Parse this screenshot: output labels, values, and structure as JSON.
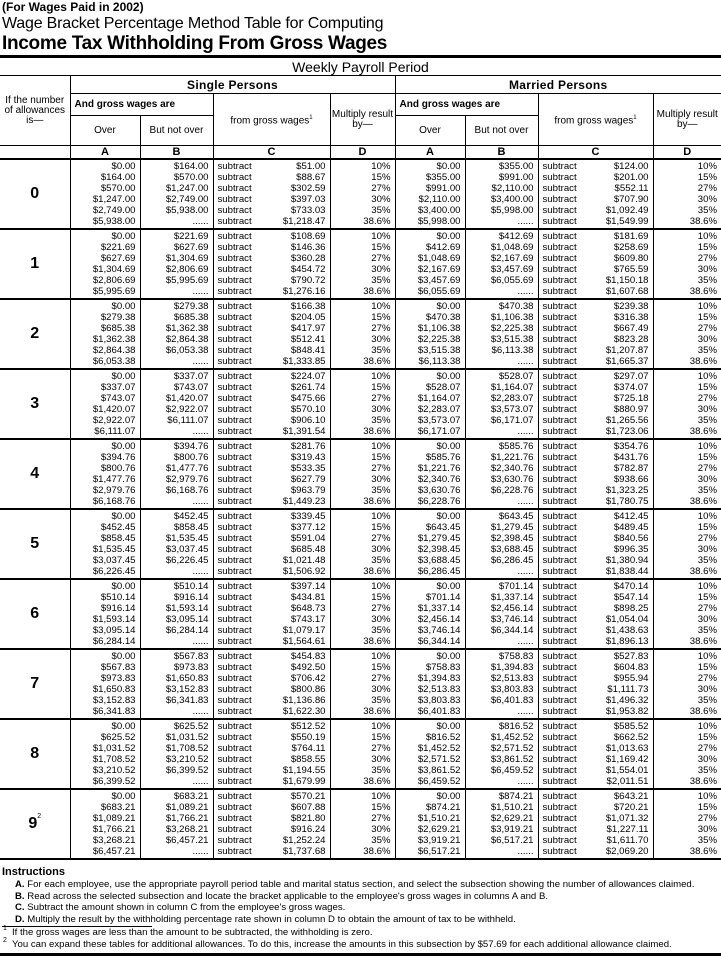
{
  "header": {
    "year_note": "(For Wages Paid in 2002)",
    "title_line1": "Wage Bracket Percentage Method Table for Computing",
    "title_line2": "Income Tax Withholding From Gross Wages",
    "period": "Weekly Payroll Period"
  },
  "columns": {
    "allowances_label": "If the number of allowances is—",
    "single": "Single Persons",
    "married": "Married Persons",
    "wages_are": "And gross wages are",
    "over": "Over",
    "but_not_over": "But not over",
    "from_gross_wages": "from gross wages",
    "footnote_mark": "1",
    "multiply": "Multiply result by—",
    "letters": [
      "A",
      "B",
      "C",
      "D"
    ]
  },
  "subtract_label": "subtract",
  "rates": [
    "10%",
    "15%",
    "27%",
    "30%",
    "35%",
    "38.6%"
  ],
  "groups": [
    {
      "n": "0",
      "sup": "",
      "single": {
        "a": [
          "$0.00",
          "$164.00",
          "$570.00",
          "$1,247.00",
          "$2,749.00",
          "$5,938.00"
        ],
        "b": [
          "$164.00",
          "$570.00",
          "$1,247.00",
          "$2,749.00",
          "$5,938.00",
          "......"
        ],
        "c": [
          "$51.00",
          "$88.67",
          "$302.59",
          "$397.03",
          "$733.03",
          "$1,218.47"
        ]
      },
      "married": {
        "a": [
          "$0.00",
          "$355.00",
          "$991.00",
          "$2,110.00",
          "$3,400.00",
          "$5,998.00"
        ],
        "b": [
          "$355.00",
          "$991.00",
          "$2,110.00",
          "$3,400.00",
          "$5,998.00",
          "......"
        ],
        "c": [
          "$124.00",
          "$201.00",
          "$552.11",
          "$707.90",
          "$1,092.49",
          "$1,549.99"
        ]
      }
    },
    {
      "n": "1",
      "sup": "",
      "single": {
        "a": [
          "$0.00",
          "$221.69",
          "$627.69",
          "$1,304.69",
          "$2,806.69",
          "$5,995.69"
        ],
        "b": [
          "$221.69",
          "$627.69",
          "$1,304.69",
          "$2,806.69",
          "$5,995.69",
          "......"
        ],
        "c": [
          "$108.69",
          "$146.36",
          "$360.28",
          "$454.72",
          "$790.72",
          "$1,276.16"
        ]
      },
      "married": {
        "a": [
          "$0.00",
          "$412.69",
          "$1,048.69",
          "$2,167.69",
          "$3,457.69",
          "$6,055.69"
        ],
        "b": [
          "$412.69",
          "$1,048.69",
          "$2,167.69",
          "$3,457.69",
          "$6,055.69",
          "......"
        ],
        "c": [
          "$181.69",
          "$258.69",
          "$609.80",
          "$765.59",
          "$1,150.18",
          "$1,607.68"
        ]
      }
    },
    {
      "n": "2",
      "sup": "",
      "single": {
        "a": [
          "$0.00",
          "$279.38",
          "$685.38",
          "$1,362.38",
          "$2,864.38",
          "$6,053.38"
        ],
        "b": [
          "$279.38",
          "$685.38",
          "$1,362.38",
          "$2,864.38",
          "$6,053.38",
          "......"
        ],
        "c": [
          "$166.38",
          "$204.05",
          "$417.97",
          "$512.41",
          "$848.41",
          "$1,333.85"
        ]
      },
      "married": {
        "a": [
          "$0.00",
          "$470.38",
          "$1,106.38",
          "$2,225.38",
          "$3,515.38",
          "$6,113.38"
        ],
        "b": [
          "$470.38",
          "$1,106.38",
          "$2,225.38",
          "$3,515.38",
          "$6,113.38",
          "......"
        ],
        "c": [
          "$239.38",
          "$316.38",
          "$667.49",
          "$823.28",
          "$1,207.87",
          "$1,665.37"
        ]
      }
    },
    {
      "n": "3",
      "sup": "",
      "single": {
        "a": [
          "$0.00",
          "$337.07",
          "$743.07",
          "$1,420.07",
          "$2,922.07",
          "$6,111.07"
        ],
        "b": [
          "$337.07",
          "$743.07",
          "$1,420.07",
          "$2,922.07",
          "$6,111.07",
          "......"
        ],
        "c": [
          "$224.07",
          "$261.74",
          "$475.66",
          "$570.10",
          "$906.10",
          "$1,391.54"
        ]
      },
      "married": {
        "a": [
          "$0.00",
          "$528.07",
          "$1,164.07",
          "$2,283.07",
          "$3,573.07",
          "$6,171.07"
        ],
        "b": [
          "$528.07",
          "$1,164.07",
          "$2,283.07",
          "$3,573.07",
          "$6,171.07",
          "......"
        ],
        "c": [
          "$297.07",
          "$374.07",
          "$725.18",
          "$880.97",
          "$1,265.56",
          "$1,723.06"
        ]
      }
    },
    {
      "n": "4",
      "sup": "",
      "single": {
        "a": [
          "$0.00",
          "$394.76",
          "$800.76",
          "$1,477.76",
          "$2,979.76",
          "$6,168.76"
        ],
        "b": [
          "$394.76",
          "$800.76",
          "$1,477.76",
          "$2,979.76",
          "$6,168.76",
          "......"
        ],
        "c": [
          "$281.76",
          "$319.43",
          "$533.35",
          "$627.79",
          "$963.79",
          "$1,449.23"
        ]
      },
      "married": {
        "a": [
          "$0.00",
          "$585.76",
          "$1,221.76",
          "$2,340.76",
          "$3,630.76",
          "$6,228.76"
        ],
        "b": [
          "$585.76",
          "$1,221.76",
          "$2,340.76",
          "$3,630.76",
          "$6,228.76",
          "......"
        ],
        "c": [
          "$354.76",
          "$431.76",
          "$782.87",
          "$938.66",
          "$1,323.25",
          "$1,780.75"
        ]
      }
    },
    {
      "n": "5",
      "sup": "",
      "single": {
        "a": [
          "$0.00",
          "$452.45",
          "$858.45",
          "$1,535.45",
          "$3,037.45",
          "$6,226.45"
        ],
        "b": [
          "$452.45",
          "$858.45",
          "$1,535.45",
          "$3,037.45",
          "$6,226.45",
          "......"
        ],
        "c": [
          "$339.45",
          "$377.12",
          "$591.04",
          "$685.48",
          "$1,021.48",
          "$1,506.92"
        ]
      },
      "married": {
        "a": [
          "$0.00",
          "$643.45",
          "$1,279.45",
          "$2,398.45",
          "$3,688.45",
          "$6,286.45"
        ],
        "b": [
          "$643.45",
          "$1,279.45",
          "$2,398.45",
          "$3,688.45",
          "$6,286.45",
          "......"
        ],
        "c": [
          "$412.45",
          "$489.45",
          "$840.56",
          "$996.35",
          "$1,380.94",
          "$1,838.44"
        ]
      }
    },
    {
      "n": "6",
      "sup": "",
      "single": {
        "a": [
          "$0.00",
          "$510.14",
          "$916.14",
          "$1,593.14",
          "$3,095.14",
          "$6,284.14"
        ],
        "b": [
          "$510.14",
          "$916.14",
          "$1,593.14",
          "$3,095.14",
          "$6,284.14",
          "......"
        ],
        "c": [
          "$397.14",
          "$434.81",
          "$648.73",
          "$743.17",
          "$1,079.17",
          "$1,564.61"
        ]
      },
      "married": {
        "a": [
          "$0.00",
          "$701.14",
          "$1,337.14",
          "$2,456.14",
          "$3,746.14",
          "$6,344.14"
        ],
        "b": [
          "$701.14",
          "$1,337.14",
          "$2,456.14",
          "$3,746.14",
          "$6,344.14",
          "......"
        ],
        "c": [
          "$470.14",
          "$547.14",
          "$898.25",
          "$1,054.04",
          "$1,438.63",
          "$1,896.13"
        ]
      }
    },
    {
      "n": "7",
      "sup": "",
      "single": {
        "a": [
          "$0.00",
          "$567.83",
          "$973.83",
          "$1,650.83",
          "$3,152.83",
          "$6,341.83"
        ],
        "b": [
          "$567.83",
          "$973.83",
          "$1,650.83",
          "$3,152.83",
          "$6,341.83",
          "......"
        ],
        "c": [
          "$454.83",
          "$492.50",
          "$706.42",
          "$800.86",
          "$1,136.86",
          "$1,622.30"
        ]
      },
      "married": {
        "a": [
          "$0.00",
          "$758.83",
          "$1,394.83",
          "$2,513.83",
          "$3,803.83",
          "$6,401.83"
        ],
        "b": [
          "$758.83",
          "$1,394.83",
          "$2,513.83",
          "$3,803.83",
          "$6,401.83",
          "......"
        ],
        "c": [
          "$527.83",
          "$604.83",
          "$955.94",
          "$1,111.73",
          "$1,496.32",
          "$1,953.82"
        ]
      }
    },
    {
      "n": "8",
      "sup": "",
      "single": {
        "a": [
          "$0.00",
          "$625.52",
          "$1,031.52",
          "$1,708.52",
          "$3,210.52",
          "$6,399.52"
        ],
        "b": [
          "$625.52",
          "$1,031.52",
          "$1,708.52",
          "$3,210.52",
          "$6,399.52",
          "......"
        ],
        "c": [
          "$512.52",
          "$550.19",
          "$764.11",
          "$858.55",
          "$1,194.55",
          "$1,679.99"
        ]
      },
      "married": {
        "a": [
          "$0.00",
          "$816.52",
          "$1,452.52",
          "$2,571.52",
          "$3,861.52",
          "$6,459.52"
        ],
        "b": [
          "$816.52",
          "$1,452.52",
          "$2,571.52",
          "$3,861.52",
          "$6,459.52",
          "......"
        ],
        "c": [
          "$585.52",
          "$662.52",
          "$1,013.63",
          "$1,169.42",
          "$1,554.01",
          "$2,011.51"
        ]
      }
    },
    {
      "n": "9",
      "sup": "2",
      "single": {
        "a": [
          "$0.00",
          "$683.21",
          "$1,089.21",
          "$1,766.21",
          "$3,268.21",
          "$6,457.21"
        ],
        "b": [
          "$683.21",
          "$1,089.21",
          "$1,766.21",
          "$3,268.21",
          "$6,457.21",
          "......"
        ],
        "c": [
          "$570.21",
          "$607.88",
          "$821.80",
          "$916.24",
          "$1,252.24",
          "$1,737.68"
        ]
      },
      "married": {
        "a": [
          "$0.00",
          "$874.21",
          "$1,510.21",
          "$2,629.21",
          "$3,919.21",
          "$6,517.21"
        ],
        "b": [
          "$874.21",
          "$1,510.21",
          "$2,629.21",
          "$3,919.21",
          "$6,517.21",
          "......"
        ],
        "c": [
          "$643.21",
          "$720.21",
          "$1,071.32",
          "$1,227.11",
          "$1,611.70",
          "$2,069.20"
        ]
      }
    }
  ],
  "instructions": {
    "heading": "Instructions",
    "steps": [
      {
        "letter": "A.",
        "text": "For each employee,  use the appropriate payroll period table and marital status section, and select the subsection showing the number of allowances claimed."
      },
      {
        "letter": "B.",
        "text": "Read across the selected subsection and locate the bracket applicable to the employee's gross wages in columns A and B."
      },
      {
        "letter": "C.",
        "text": "Subtract the amount shown in column C from the employee's gross wages."
      },
      {
        "letter": "D.",
        "text": "Multiply the result by the withholding percentage rate shown in column D to obtain the amount of tax to be withheld."
      }
    ],
    "footnotes": [
      {
        "mark": "1",
        "text": "If the gross wages are less than the amount to be subtracted, the withholding is zero."
      },
      {
        "mark": "2",
        "text": "You can expand these tables for additional allowances. To do this, increase the amounts in this subsection by $57.69 for each additional allowance claimed."
      }
    ]
  }
}
